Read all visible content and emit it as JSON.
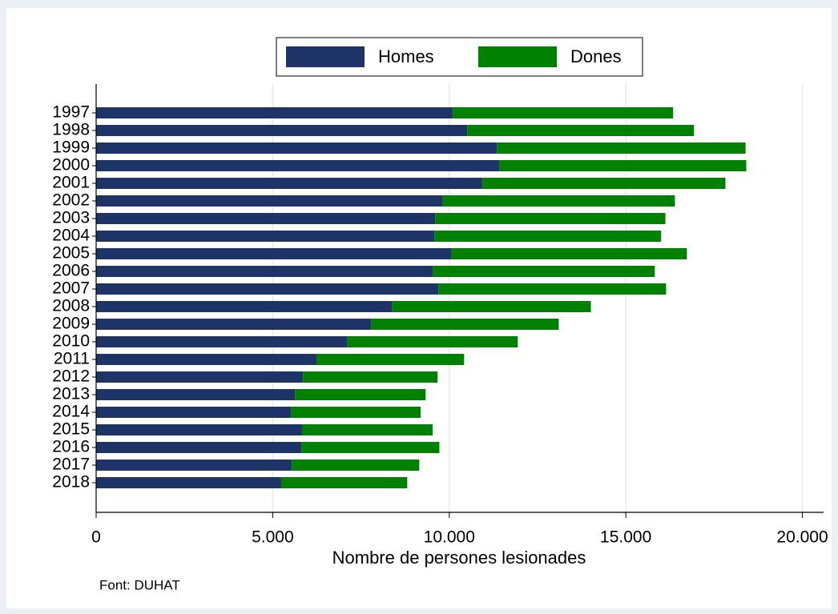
{
  "chart_data": {
    "type": "stacked_barh",
    "categories": [
      "1997",
      "1998",
      "1999",
      "2000",
      "2001",
      "2002",
      "2003",
      "2004",
      "2005",
      "2006",
      "2007",
      "2008",
      "2009",
      "2010",
      "2011",
      "2012",
      "2013",
      "2014",
      "2015",
      "2016",
      "2017",
      "2018"
    ],
    "series": [
      {
        "name": "Homes",
        "color": "#1f3466",
        "values": [
          10100,
          10510,
          11350,
          11420,
          10940,
          9810,
          9600,
          9580,
          10060,
          9530,
          9690,
          8380,
          7790,
          7110,
          6240,
          5860,
          5630,
          5520,
          5830,
          5810,
          5540,
          5240
        ]
      },
      {
        "name": "Dones",
        "color": "#008000",
        "values": [
          6240,
          6420,
          7040,
          6990,
          6880,
          6580,
          6520,
          6420,
          6670,
          6290,
          6450,
          5630,
          5310,
          4830,
          4180,
          3810,
          3700,
          3670,
          3700,
          3910,
          3610,
          3570
        ]
      }
    ],
    "xlabel": "Nombre de persones lesionades",
    "note": "Font: DUHAT",
    "xlim": [
      0,
      20600
    ],
    "xticks": [
      0,
      {
        "value": 5000,
        "label": "5.000"
      },
      {
        "value": 10000,
        "label": "10.000"
      },
      {
        "value": 15000,
        "label": "15.000"
      },
      {
        "value": 20000,
        "label": "20.000"
      }
    ],
    "grid": true,
    "legend": "top"
  }
}
